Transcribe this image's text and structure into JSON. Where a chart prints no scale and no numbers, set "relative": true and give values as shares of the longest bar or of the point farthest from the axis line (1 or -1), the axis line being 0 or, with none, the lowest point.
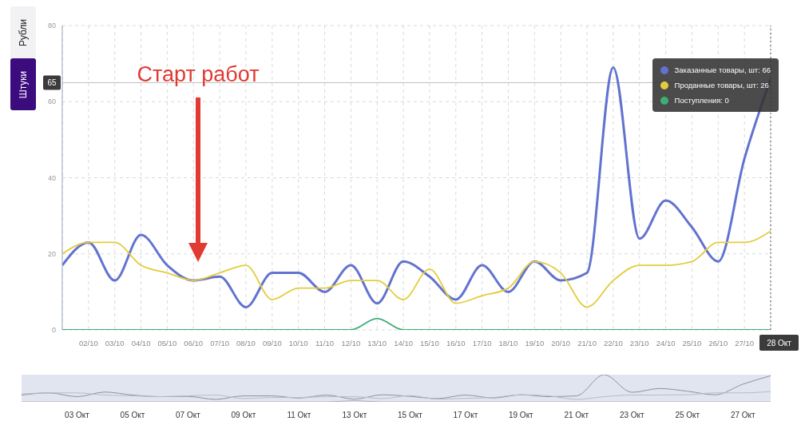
{
  "chart_data": [
    {
      "type": "line",
      "categories": [
        null,
        "02/10",
        "03/10",
        "04/10",
        "05/10",
        "06/10",
        "07/10",
        "08/10",
        "09/10",
        "10/10",
        "11/10",
        "12/10",
        "13/10",
        "14/10",
        "15/10",
        "16/10",
        "17/10",
        "18/10",
        "19/10",
        "20/10",
        "21/10",
        "22/10",
        "23/10",
        "24/10",
        "25/10",
        "26/10",
        "27/10",
        "28 Окт"
      ],
      "series": [
        {
          "name": "Заказанные товары, шт: 66",
          "color": "#6273cf",
          "values": [
            17,
            23,
            13,
            25,
            17,
            13,
            14,
            6,
            15,
            15,
            10,
            17,
            7,
            18,
            14,
            8,
            17,
            10,
            18,
            13,
            15,
            69,
            24,
            34,
            27,
            18,
            45,
            66
          ]
        },
        {
          "name": "Проданные товары, шт: 26",
          "color": "#e3cc3c",
          "values": [
            20,
            23,
            23,
            17,
            15,
            13,
            15,
            17,
            8,
            11,
            11,
            13,
            13,
            8,
            16,
            7,
            9,
            11,
            18,
            15,
            6,
            13,
            17,
            17,
            18,
            23,
            23,
            26
          ]
        },
        {
          "name": "Поступления: 0",
          "color": "#3fae74",
          "values": [
            0,
            0,
            0,
            0,
            0,
            0,
            0,
            0,
            0,
            0,
            0,
            0,
            3,
            0,
            0,
            0,
            0,
            0,
            0,
            0,
            0,
            0,
            0,
            0,
            0,
            0,
            0,
            0
          ]
        }
      ],
      "ylim": [
        0,
        80
      ],
      "yticks": [
        0,
        20,
        40,
        60,
        80
      ],
      "grid": true,
      "legend": "top right",
      "line_style": "solid",
      "ref_lines": [
        {
          "axis": "y",
          "value": 65,
          "label": "65",
          "color": "#c0c0c0"
        },
        {
          "axis": "x",
          "value": "28 Окт",
          "color": "#555555",
          "line_style": "dotted"
        }
      ],
      "annotations": [
        "Рубли",
        "Штуки",
        "Старт работ"
      ]
    },
    {
      "type": "line",
      "relative": true,
      "categories": [
        null,
        null,
        "03 Окт",
        null,
        "05 Окт",
        null,
        "07 Окт",
        null,
        "09 Окт",
        null,
        "11 Окт",
        null,
        "13 Окт",
        null,
        "15 Окт",
        null,
        "17 Окт",
        null,
        "19 Окт",
        null,
        "21 Окт",
        null,
        "23 Окт",
        null,
        "25 Окт",
        null,
        "27 Окт",
        null
      ],
      "series": [
        {
          "color": "#8d929b",
          "values": [
            0.25,
            0.33,
            0.19,
            0.36,
            0.25,
            0.19,
            0.2,
            0.09,
            0.22,
            0.22,
            0.14,
            0.25,
            0.1,
            0.26,
            0.2,
            0.12,
            0.25,
            0.14,
            0.26,
            0.19,
            0.22,
            1,
            0.35,
            0.49,
            0.39,
            0.26,
            0.65,
            0.96
          ]
        },
        {
          "color": "#b9bcc4",
          "values": [
            0.29,
            0.33,
            0.33,
            0.25,
            0.22,
            0.19,
            0.22,
            0.25,
            0.12,
            0.16,
            0.16,
            0.19,
            0.19,
            0.12,
            0.23,
            0.1,
            0.13,
            0.16,
            0.26,
            0.22,
            0.09,
            0.19,
            0.25,
            0.25,
            0.26,
            0.33,
            0.33,
            0.38
          ]
        },
        {
          "color": "#a5a9b1",
          "values": [
            0,
            0,
            0,
            0,
            0,
            0,
            0,
            0,
            0,
            0,
            0,
            0,
            0.04,
            0,
            0,
            0,
            0,
            0,
            0,
            0,
            0,
            0,
            0,
            0,
            0,
            0,
            0,
            0
          ]
        }
      ]
    }
  ]
}
